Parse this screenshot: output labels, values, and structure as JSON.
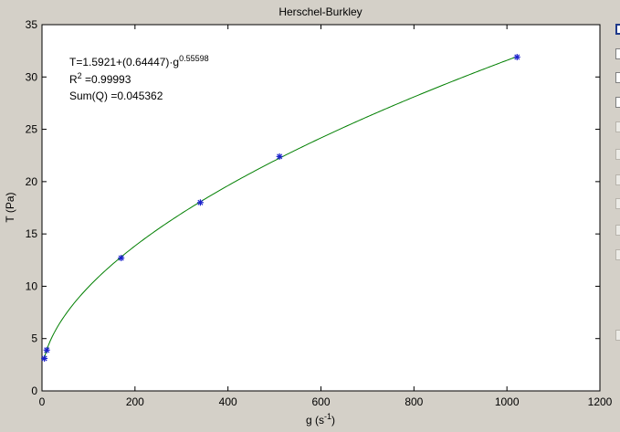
{
  "chart_data": {
    "type": "scatter",
    "title": "Herschel-Burkley",
    "xlabel": "g (s-1)",
    "ylabel": "T (Pa)",
    "xlim": [
      0,
      1200
    ],
    "ylim": [
      0,
      35
    ],
    "xticks": [
      0,
      200,
      400,
      600,
      800,
      1000,
      1200
    ],
    "yticks": [
      0,
      5,
      10,
      15,
      20,
      25,
      30,
      35
    ],
    "grid": false,
    "series": [
      {
        "kind": "markers",
        "marker": "asterisk",
        "color": "#1c22cc",
        "x": [
          5.11,
          10.22,
          170.3,
          340.6,
          510.9,
          1021.8
        ],
        "y": [
          3.1,
          3.9,
          12.7,
          18.0,
          22.4,
          31.9
        ]
      },
      {
        "kind": "fit-curve",
        "color": "#007f00",
        "model": {
          "tau0": 1.5921,
          "k": 0.64447,
          "n": 0.55598
        },
        "x_range": [
          5.11,
          1021.8
        ]
      }
    ],
    "annotations": {
      "equation": "T=1.5921+(0.64447)·g",
      "equation_exp": "0.55598",
      "r2_label": "R",
      "r2_exp": "2",
      "r2_value": " =0.99993",
      "sumq": "Sum(Q) =0.045362"
    }
  },
  "labels": {
    "xlabel_main": "g (s",
    "xlabel_exp": "-1",
    "xlabel_close": ")"
  }
}
